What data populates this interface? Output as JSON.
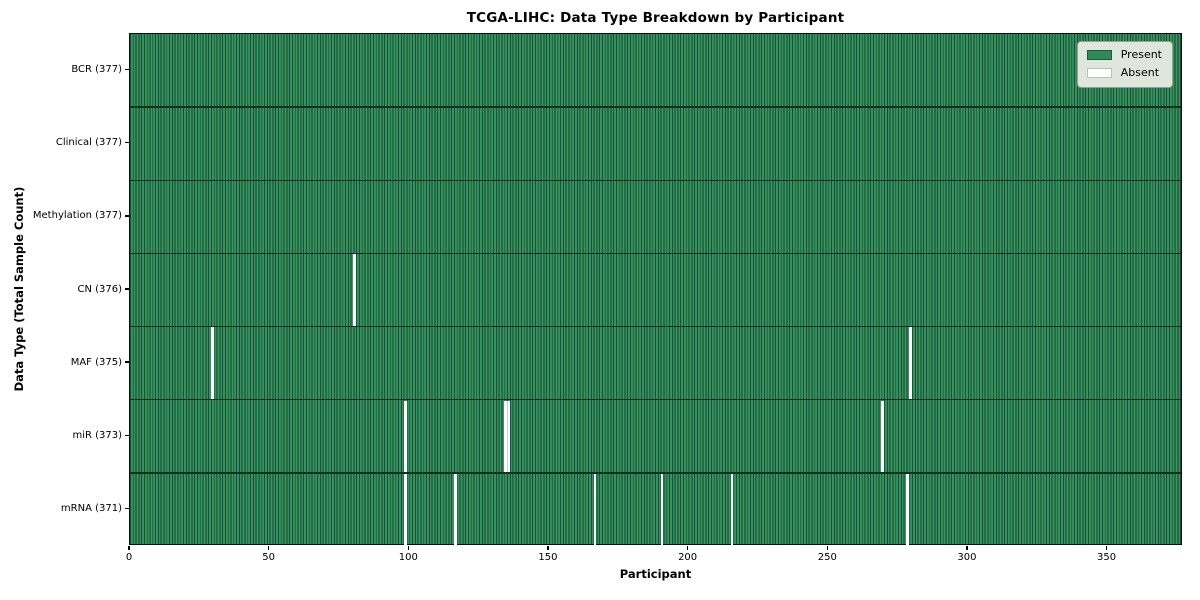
{
  "chart_data": {
    "type": "heatmap",
    "title": "TCGA-LIHC: Data Type Breakdown by Participant",
    "xlabel": "Participant",
    "ylabel": "Data Type (Total Sample Count)",
    "x_ticks": [
      0,
      50,
      100,
      150,
      200,
      250,
      300,
      350
    ],
    "x_range": [
      0,
      377
    ],
    "n_participants": 377,
    "legend": [
      {
        "label": "Present",
        "value": "present"
      },
      {
        "label": "Absent",
        "value": "absent"
      }
    ],
    "rows": [
      {
        "label": "BCR (377)",
        "data_type": "BCR",
        "present_count": 377,
        "absent_participants": []
      },
      {
        "label": "Clinical (377)",
        "data_type": "Clinical",
        "present_count": 377,
        "absent_participants": []
      },
      {
        "label": "Methylation (377)",
        "data_type": "Methylation",
        "present_count": 377,
        "absent_participants": []
      },
      {
        "label": "CN (376)",
        "data_type": "CN",
        "present_count": 376,
        "absent_participants": [
          80
        ]
      },
      {
        "label": "MAF (375)",
        "data_type": "MAF",
        "present_count": 375,
        "absent_participants": [
          29,
          279
        ]
      },
      {
        "label": "miR (373)",
        "data_type": "miR",
        "present_count": 373,
        "absent_participants": [
          98,
          134,
          135,
          269
        ]
      },
      {
        "label": "mRNA (371)",
        "data_type": "mRNA",
        "present_count": 371,
        "absent_participants": [
          98,
          116,
          166,
          190,
          215,
          278
        ]
      }
    ],
    "colors": {
      "present": "#2e8b57",
      "present_light": "#3f9468",
      "cell_edge": "#1b5136",
      "row_line": "#16301f",
      "absent": "#ffffff",
      "pair_divider": "#c6cfc6",
      "legend_face": "#dfe6dc",
      "legend_edge": "#9b9b9b",
      "green_swatch_edge": "#1e5c3d",
      "white_swatch_edge": "#b9c2b6",
      "spine": "#0d0d0d",
      "text": "#000000"
    }
  }
}
